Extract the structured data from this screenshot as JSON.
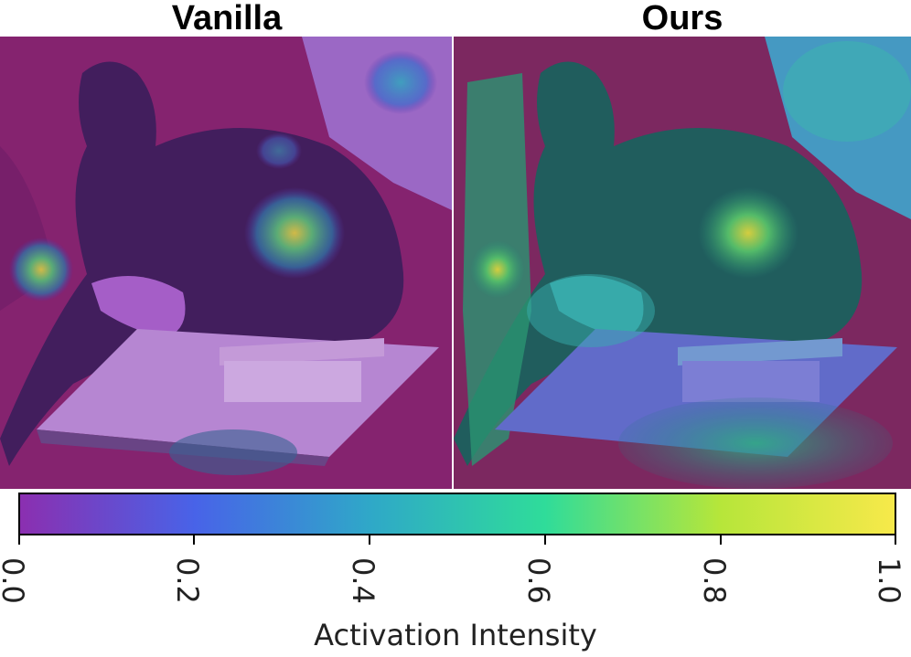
{
  "titles": {
    "left": "Vanilla",
    "right": "Ours"
  },
  "colorbar": {
    "label": "Activation Intensity",
    "range": [
      0.0,
      1.0
    ],
    "ticks": [
      "0.0",
      "0.2",
      "0.4",
      "0.6",
      "0.8",
      "1.0"
    ],
    "colormap": "viridis-like",
    "stops": [
      "#8b2fb0",
      "#4863e8",
      "#2fa8c8",
      "#2fdc9a",
      "#b6e63a",
      "#f7e94a"
    ]
  },
  "scene": {
    "background_color": "#8a1a4f",
    "subject": "black dog lying on red couch behind a white tray with a phone"
  }
}
